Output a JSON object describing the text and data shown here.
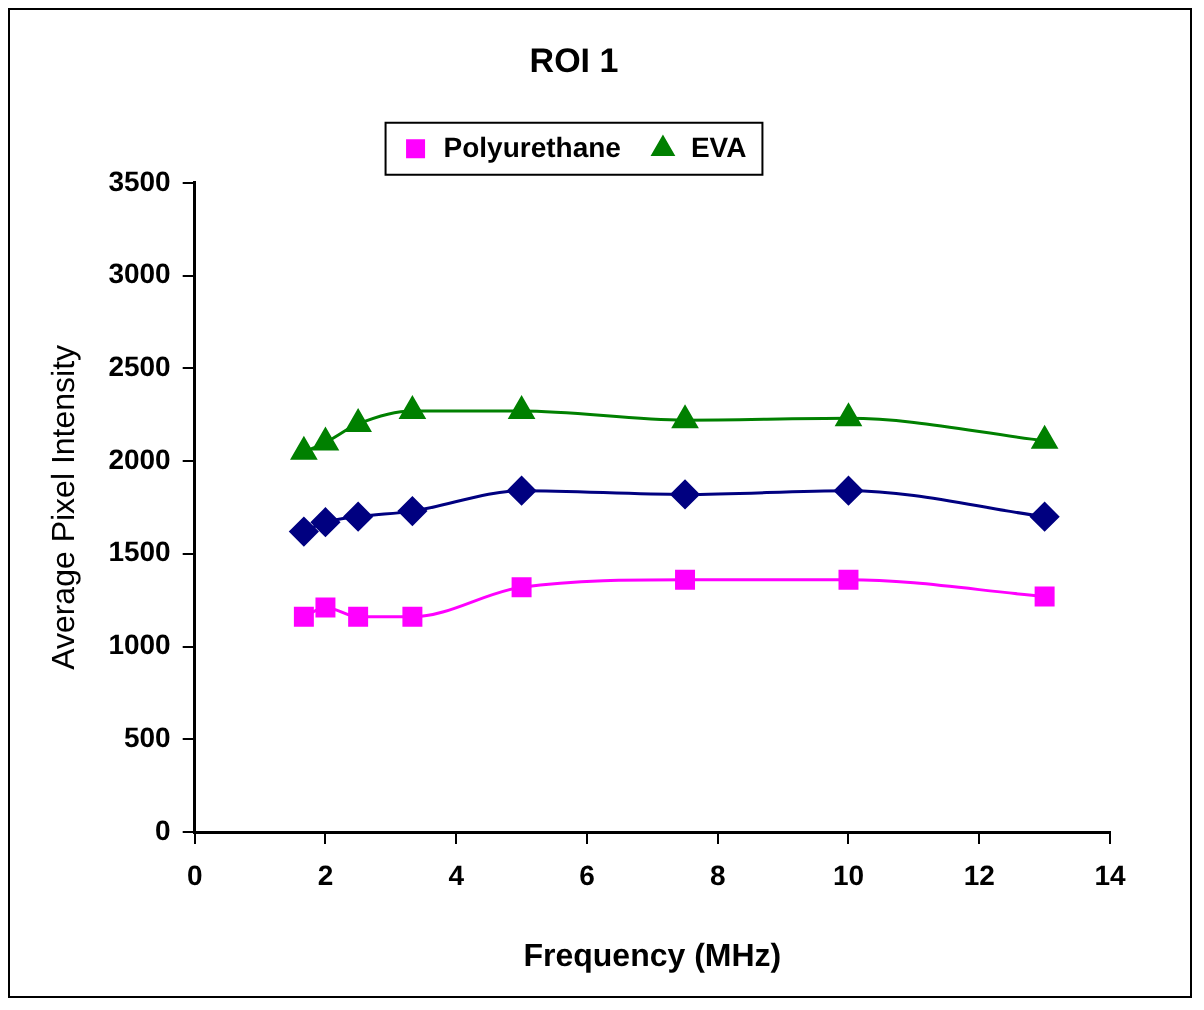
{
  "chart_data": {
    "type": "line",
    "title": "ROI 1",
    "xlabel": "Frequency (MHz)",
    "ylabel": "Average Pixel Intensity",
    "xlim": [
      0,
      14
    ],
    "xticks": [
      0,
      2,
      4,
      6,
      8,
      10,
      12,
      14
    ],
    "ylim": [
      0,
      3500
    ],
    "yticks": [
      0,
      500,
      1000,
      1500,
      2000,
      2500,
      3000,
      3500
    ],
    "grid": false,
    "legend": "top",
    "line_style": "solid",
    "series": [
      {
        "color": "#000080",
        "marker": "diamond",
        "x": [
          1.67,
          2,
          2.5,
          3.33,
          5,
          7.5,
          10,
          13
        ],
        "values": [
          1620,
          1670,
          1700,
          1730,
          1840,
          1820,
          1840,
          1700
        ]
      },
      {
        "name": "Polyurethane",
        "color": "#ff00ff",
        "marker": "square",
        "x": [
          1.67,
          2,
          2.5,
          3.33,
          5,
          7.5,
          10,
          13
        ],
        "values": [
          1160,
          1210,
          1160,
          1160,
          1320,
          1360,
          1360,
          1270
        ]
      },
      {
        "name": "EVA",
        "color": "#008000",
        "marker": "triangle",
        "x": [
          1.67,
          2,
          2.5,
          3.33,
          5,
          7.5,
          10,
          13
        ],
        "values": [
          2050,
          2100,
          2200,
          2270,
          2270,
          2220,
          2230,
          2110
        ]
      }
    ]
  }
}
